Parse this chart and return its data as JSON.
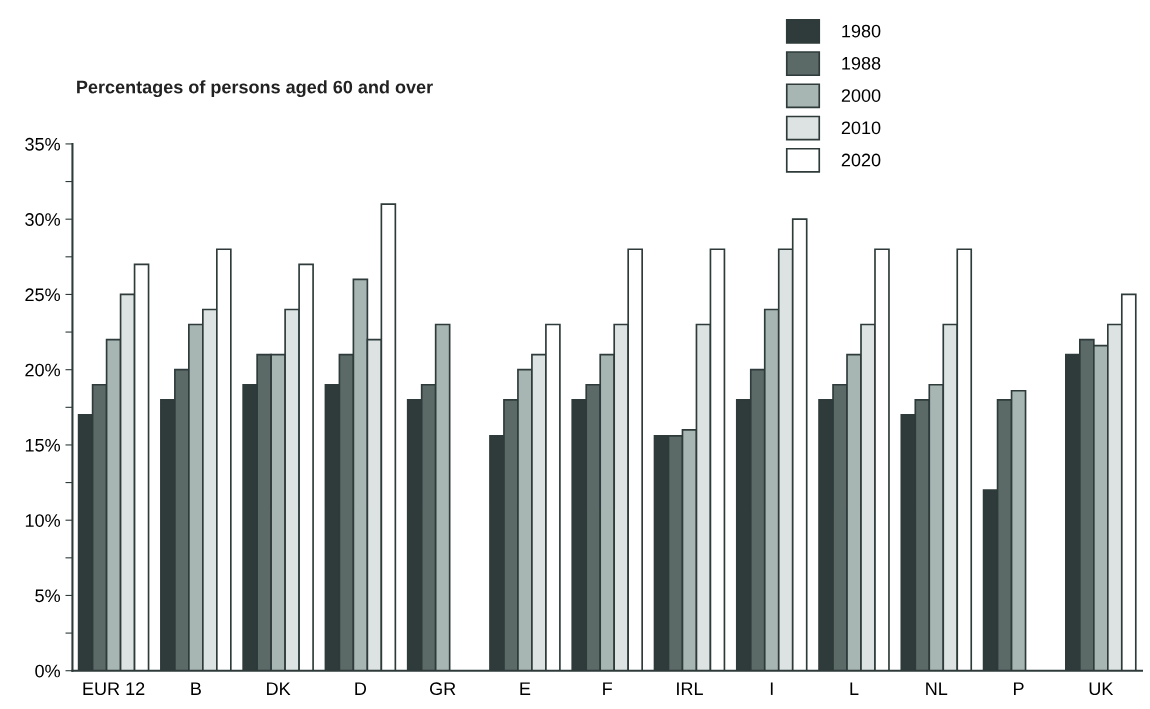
{
  "chart_data": {
    "type": "bar",
    "title": "Percentages of persons aged 60 and over",
    "categories": [
      "EUR 12",
      "B",
      "DK",
      "D",
      "GR",
      "E",
      "F",
      "IRL",
      "I",
      "L",
      "NL",
      "P",
      "UK"
    ],
    "series": [
      {
        "name": "1980",
        "color": "#2e3b3a",
        "values": [
          17,
          18,
          19,
          19,
          18,
          15.6,
          18,
          15.6,
          18,
          18,
          17,
          12,
          21
        ]
      },
      {
        "name": "1988",
        "color": "#5b6967",
        "values": [
          19,
          20,
          21,
          21,
          19,
          18,
          19,
          15.6,
          20,
          19,
          18,
          18,
          22
        ]
      },
      {
        "name": "2000",
        "color": "#a7b6b3",
        "values": [
          22,
          23,
          21,
          26,
          23,
          20,
          21,
          16,
          24,
          21,
          19,
          18.6,
          21.6
        ]
      },
      {
        "name": "2010",
        "color": "#dde3e2",
        "values": [
          25,
          24,
          24,
          22,
          null,
          21,
          23,
          23,
          28,
          23,
          23,
          null,
          23
        ]
      },
      {
        "name": "2020",
        "color": "#ffffff",
        "values": [
          27,
          28,
          27,
          31,
          null,
          23,
          28,
          28,
          30,
          28,
          28,
          null,
          25
        ]
      }
    ],
    "ylim": [
      0,
      35
    ],
    "yticks": [
      {
        "value": 0,
        "label": "0%"
      },
      {
        "value": 2.5,
        "label": null
      },
      {
        "value": 5,
        "label": "5%"
      },
      {
        "value": 7.5,
        "label": null
      },
      {
        "value": 10,
        "label": "10%"
      },
      {
        "value": 12.5,
        "label": null
      },
      {
        "value": 15,
        "label": "15%"
      },
      {
        "value": 17.5,
        "label": null
      },
      {
        "value": 20,
        "label": "20%"
      },
      {
        "value": 22.5,
        "label": null
      },
      {
        "value": 25,
        "label": "25%"
      },
      {
        "value": 27.5,
        "label": null
      },
      {
        "value": 30,
        "label": "30%"
      },
      {
        "value": 32.5,
        "label": null
      },
      {
        "value": 35,
        "label": "35%"
      }
    ],
    "legend": "top right",
    "grid": false
  }
}
